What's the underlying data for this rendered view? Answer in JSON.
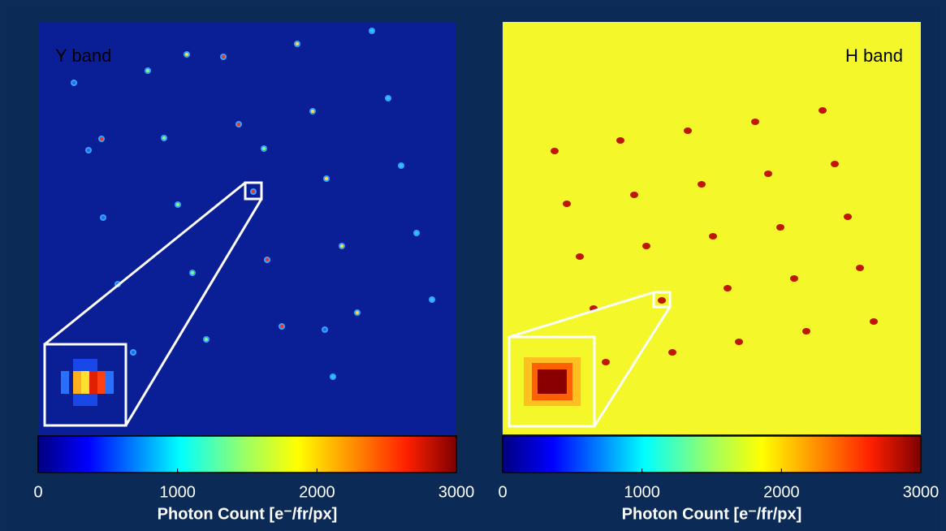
{
  "panels": [
    {
      "label": "Y band",
      "colorbar": {
        "clim": [
          0,
          3000
        ],
        "ticks": [
          0,
          1000,
          2000,
          3000
        ],
        "label": "Photon Count [e⁻/fr/px]"
      }
    },
    {
      "label": "H band",
      "colorbar": {
        "clim": [
          0,
          3000
        ],
        "ticks": [
          0,
          1000,
          2000,
          3000
        ],
        "label": "Photon Count [e⁻/fr/px]"
      }
    }
  ]
}
